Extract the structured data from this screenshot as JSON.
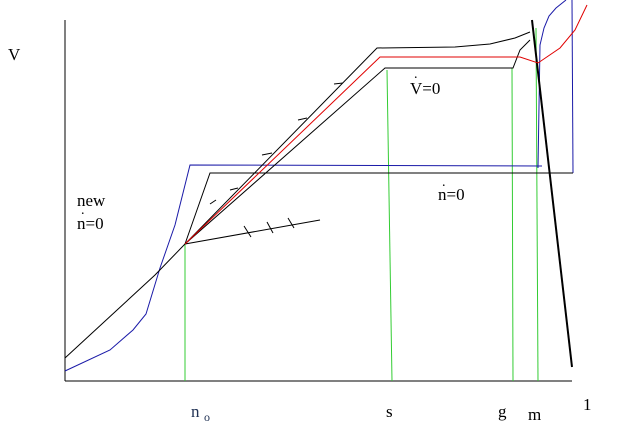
{
  "axes": {
    "y_label": "V",
    "x_end_label": "1"
  },
  "x_labels": {
    "n0": "n",
    "n0_sub": "o",
    "s": "s",
    "g": "g",
    "m": "m"
  },
  "annotations": {
    "v_dot_zero": "V=0",
    "n_dot_zero": "n=0",
    "new_line1": "new",
    "new_line2": "n=0"
  },
  "colors": {
    "black": "#000000",
    "blue": "#1a1aa8",
    "red": "#e00000",
    "green": "#33cc33",
    "dark_label": "#223355"
  }
}
